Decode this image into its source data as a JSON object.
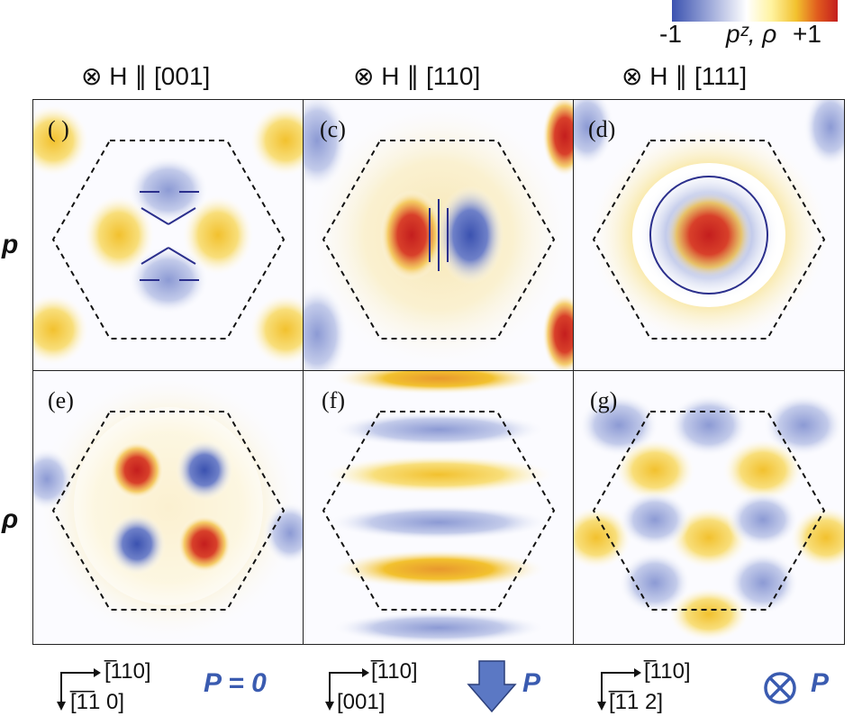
{
  "colorbar": {
    "min_label": "-1",
    "max_label": "+1",
    "quantity_label": "pᶻ, ρ"
  },
  "headers": [
    "⊗ H  ∥ [001]",
    "⊗ H  ∥ [110]",
    "⊗ H  ∥ [111]"
  ],
  "row_labels": {
    "top": "p",
    "bottom": "ρ"
  },
  "panels": {
    "b": "(  )",
    "c": "(c)",
    "d": "(d)",
    "e": "(e)",
    "f": "(f)",
    "g": "(g)"
  },
  "axes": [
    {
      "x": "[̅110]",
      "y": "[̅1̅1 0]"
    },
    {
      "x": "[̅110]",
      "y": "[001]"
    },
    {
      "x": "[̅110]",
      "y": "[̅1̅1 2]"
    }
  ],
  "polarization": {
    "col1": "P = 0",
    "col2": "P",
    "col3": "P"
  },
  "colors": {
    "blue": "#3b52b0",
    "red": "#c41e1e",
    "yellow": "#f2c12e",
    "accent": "#3a5bb0",
    "arrow": "#5b78c4"
  }
}
